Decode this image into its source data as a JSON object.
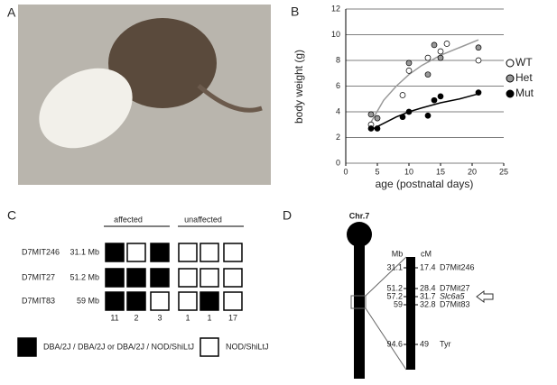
{
  "panel_labels": [
    "A",
    "B",
    "C",
    "D"
  ],
  "chart_data": {
    "type": "scatter",
    "xlabel": "age (postnatal days)",
    "ylabel": "body weight  (g)",
    "xlim": [
      0,
      25
    ],
    "xticks": [
      0,
      5,
      10,
      15,
      20,
      25
    ],
    "ylim": [
      0,
      12
    ],
    "yticks": [
      0,
      2,
      4,
      6,
      8,
      10,
      12
    ],
    "grid": true,
    "series": [
      {
        "name": "WT",
        "color": "#ffffff",
        "x": [
          4,
          9,
          10,
          13,
          15,
          16,
          21
        ],
        "values": [
          3.0,
          5.3,
          7.2,
          8.2,
          8.7,
          9.3,
          8.0
        ]
      },
      {
        "name": "Het",
        "color": "#999999",
        "x": [
          4,
          5,
          10,
          13,
          14,
          15,
          21
        ],
        "values": [
          3.8,
          3.5,
          7.8,
          6.9,
          9.2,
          8.2,
          9.0
        ]
      },
      {
        "name": "Mut",
        "color": "#000000",
        "x": [
          4,
          5,
          9,
          10,
          13,
          14,
          15,
          21
        ],
        "values": [
          2.7,
          2.7,
          3.6,
          4.0,
          3.7,
          4.9,
          5.2,
          5.5
        ]
      }
    ],
    "trend_lines": [
      {
        "color": "#999999",
        "x": [
          4,
          6,
          8,
          10,
          12,
          15,
          18,
          21
        ],
        "values": [
          3.2,
          4.9,
          6.0,
          6.9,
          7.6,
          8.4,
          9.0,
          9.6
        ]
      },
      {
        "color": "#000000",
        "x": [
          4,
          6,
          8,
          10,
          12,
          15,
          18,
          21
        ],
        "values": [
          2.6,
          3.1,
          3.6,
          4.0,
          4.3,
          4.7,
          5.0,
          5.4
        ]
      }
    ]
  },
  "haplotype": {
    "groups": [
      "affected",
      "unaffected"
    ],
    "markers": [
      {
        "name": "D7MIT246",
        "position": "31.1 Mb",
        "cells": [
          1,
          0,
          1,
          0,
          0,
          0
        ]
      },
      {
        "name": "D7MIT27",
        "position": "51.2 Mb",
        "cells": [
          1,
          1,
          1,
          0,
          0,
          0
        ]
      },
      {
        "name": "D7MIT83",
        "position": "59 Mb",
        "cells": [
          1,
          1,
          0,
          0,
          1,
          0
        ]
      }
    ],
    "counts": [
      11,
      2,
      3,
      1,
      1,
      17
    ],
    "legend": [
      {
        "label": "NOD/ShiLtJ",
        "color": "#ffffff"
      },
      {
        "label": "DBA/2J / DBA/2J or DBA/2J / NOD/ShiLtJ",
        "color": "#000000"
      }
    ]
  },
  "map": {
    "chromosome": "Chr.7",
    "mb_header": "Mb",
    "cm_header": "cM",
    "loci": [
      {
        "mb": "31.1",
        "cm": "17.4",
        "name": "D7Mit246"
      },
      {
        "mb": "51.2",
        "cm": "28.4",
        "name": "D7Mit27"
      },
      {
        "mb": "57.2",
        "cm": "31.7",
        "name": "Slc6a5"
      },
      {
        "mb": "59",
        "cm": "32.8",
        "name": "D7Mit83"
      },
      {
        "mb": "94.6",
        "cm": "49",
        "name": "Tyr"
      }
    ]
  }
}
